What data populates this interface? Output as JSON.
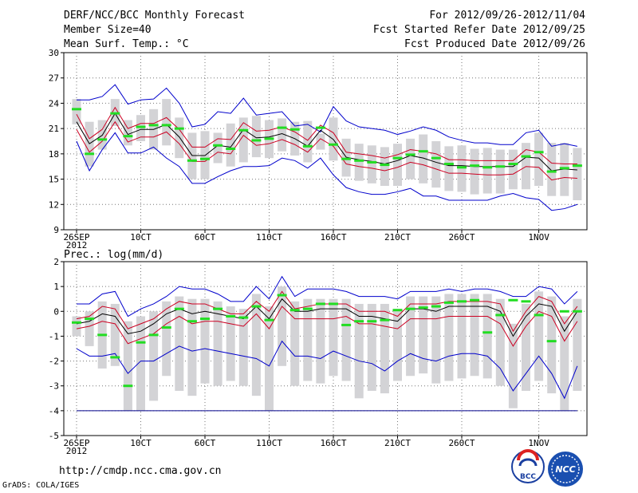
{
  "header": {
    "title": "DERF/NCC/BCC Monthly Forecast",
    "member": "Member Size=40",
    "variable": "Mean Surf. Temp.: °C",
    "period": "For 2012/09/26-2012/11/04",
    "started": "Fcst Started Refer Date 2012/09/25",
    "produced": "Fcst Produced Date 2012/09/26"
  },
  "precip_label": "Prec.: log(mm/d)",
  "footer": {
    "url": "http://cmdp.ncc.cma.gov.cn",
    "grads": "GrADS: COLA/IGES",
    "logo_bcc": "BCC",
    "logo_ncc": "NCC"
  },
  "colors": {
    "envelope": "#0000cc",
    "spread": "#cc0022",
    "mean": "#000000",
    "box": "#d3d3d6",
    "obs": "#22dd22",
    "floor": "#00008b"
  },
  "x_ticks": [
    "26SEP",
    "10CT",
    "60CT",
    "110CT",
    "160CT",
    "210CT",
    "260CT",
    "1NOV"
  ],
  "x_tick_days": [
    0,
    5,
    10,
    15,
    20,
    25,
    30,
    36
  ],
  "x_sub": "2012",
  "chart_data": [
    {
      "type": "line",
      "title": "Mean Surf. Temp.: °C",
      "ylim": [
        9,
        30
      ],
      "yticks": [
        9,
        12,
        15,
        18,
        21,
        24,
        27,
        30
      ],
      "x": [
        0,
        1,
        2,
        3,
        4,
        5,
        6,
        7,
        8,
        9,
        10,
        11,
        12,
        13,
        14,
        15,
        16,
        17,
        18,
        19,
        20,
        21,
        22,
        23,
        24,
        25,
        26,
        27,
        28,
        29,
        30,
        31,
        32,
        33,
        34,
        35,
        36,
        37,
        38,
        39
      ],
      "series": [
        {
          "name": "max",
          "values": [
            24.4,
            24.4,
            24.8,
            26.2,
            23.9,
            24.4,
            24.5,
            25.8,
            24.0,
            21.2,
            21.5,
            23.0,
            22.8,
            24.6,
            22.6,
            22.8,
            23.0,
            21.3,
            21.5,
            20.6,
            23.6,
            21.9,
            21.2,
            21.0,
            20.8,
            20.3,
            20.7,
            21.2,
            20.8,
            20.0,
            19.6,
            19.3,
            19.3,
            19.1,
            19.1,
            20.5,
            20.8,
            18.9,
            19.2,
            18.9
          ]
        },
        {
          "name": "upper",
          "values": [
            22.7,
            19.8,
            20.9,
            23.5,
            21.0,
            21.6,
            21.6,
            22.3,
            20.9,
            18.8,
            18.8,
            19.8,
            19.7,
            21.7,
            20.7,
            20.8,
            21.2,
            20.6,
            19.6,
            21.4,
            20.5,
            18.2,
            18.0,
            17.8,
            17.5,
            17.9,
            18.5,
            18.3,
            18.0,
            17.3,
            17.3,
            17.2,
            17.2,
            17.2,
            17.2,
            18.5,
            18.2,
            16.9,
            16.8,
            16.8
          ]
        },
        {
          "name": "mean",
          "values": [
            21.8,
            19.2,
            20.2,
            22.8,
            20.3,
            20.9,
            20.9,
            21.5,
            20.0,
            17.8,
            17.8,
            19.0,
            18.8,
            20.9,
            19.9,
            20.0,
            20.4,
            19.8,
            18.9,
            20.8,
            19.7,
            17.6,
            17.3,
            17.1,
            16.8,
            17.2,
            17.8,
            17.5,
            17.0,
            16.6,
            16.6,
            16.5,
            16.5,
            16.5,
            16.5,
            17.6,
            17.5,
            16.0,
            16.2,
            16.1
          ]
        },
        {
          "name": "lower",
          "values": [
            20.9,
            18.2,
            19.5,
            21.8,
            19.4,
            20.0,
            20.0,
            20.6,
            19.2,
            17.1,
            17.1,
            18.2,
            18.0,
            20.2,
            19.0,
            19.2,
            19.7,
            19.1,
            18.2,
            19.8,
            18.9,
            16.8,
            16.5,
            16.3,
            16.0,
            16.4,
            17.0,
            16.7,
            16.2,
            15.7,
            15.7,
            15.6,
            15.5,
            15.5,
            15.6,
            16.5,
            16.4,
            14.9,
            15.2,
            15.1
          ]
        },
        {
          "name": "min",
          "values": [
            19.5,
            16.0,
            18.5,
            20.5,
            18.1,
            18.1,
            18.8,
            17.5,
            16.5,
            14.5,
            14.5,
            15.3,
            16.0,
            16.5,
            16.5,
            16.6,
            17.5,
            17.2,
            16.3,
            17.5,
            15.5,
            14.0,
            13.5,
            13.2,
            13.2,
            13.5,
            13.9,
            13.0,
            13.0,
            12.5,
            12.5,
            12.5,
            12.5,
            13.0,
            13.3,
            12.8,
            12.6,
            11.3,
            11.5,
            12.0
          ]
        },
        {
          "name": "box_high",
          "values": [
            24.5,
            21.8,
            22.0,
            24.5,
            22.0,
            22.6,
            23.3,
            24.5,
            22.3,
            20.5,
            20.7,
            20.5,
            21.6,
            22.3,
            22.5,
            22.0,
            22.2,
            21.8,
            21.9,
            20.4,
            22.3,
            19.8,
            19.2,
            19.0,
            18.8,
            19.2,
            19.8,
            20.3,
            19.5,
            18.9,
            19.0,
            18.6,
            18.7,
            18.5,
            18.5,
            19.3,
            20.5,
            19.3,
            19.3,
            18.7
          ]
        },
        {
          "name": "box_low",
          "values": [
            21.5,
            16.5,
            18.5,
            21.3,
            19.0,
            19.5,
            18.5,
            19.0,
            17.5,
            15.0,
            15.0,
            16.9,
            16.5,
            17.0,
            17.6,
            17.5,
            18.3,
            17.8,
            17.0,
            18.5,
            17.2,
            15.3,
            14.8,
            14.5,
            14.2,
            14.2,
            15.0,
            14.5,
            14.0,
            13.6,
            13.5,
            13.2,
            13.3,
            13.3,
            13.8,
            13.8,
            14.2,
            13.0,
            13.0,
            12.5
          ]
        },
        {
          "name": "observed",
          "values": [
            23.3,
            18.0,
            19.7,
            22.8,
            20.1,
            21.2,
            21.4,
            21.4,
            21.0,
            17.2,
            17.4,
            19.0,
            18.6,
            20.8,
            19.6,
            19.8,
            21.1,
            20.9,
            18.9,
            21.1,
            19.1,
            17.4,
            17.2,
            17.0,
            16.7,
            17.5,
            17.9,
            18.3,
            17.5,
            16.8,
            16.4,
            16.6,
            16.4,
            16.5,
            16.8,
            17.7,
            18.2,
            15.9,
            16.3,
            16.6
          ]
        }
      ]
    },
    {
      "type": "line",
      "title": "Prec.: log(mm/d)",
      "ylim": [
        -5,
        2
      ],
      "yticks": [
        -5,
        -4,
        -3,
        -2,
        -1,
        0,
        1,
        2
      ],
      "x": [
        0,
        1,
        2,
        3,
        4,
        5,
        6,
        7,
        8,
        9,
        10,
        11,
        12,
        13,
        14,
        15,
        16,
        17,
        18,
        19,
        20,
        21,
        22,
        23,
        24,
        25,
        26,
        27,
        28,
        29,
        30,
        31,
        32,
        33,
        34,
        35,
        36,
        37,
        38,
        39
      ],
      "series": [
        {
          "name": "max",
          "values": [
            0.3,
            0.3,
            0.7,
            0.8,
            -0.2,
            0.1,
            0.3,
            0.6,
            1.0,
            0.9,
            0.9,
            0.7,
            0.4,
            0.4,
            1.0,
            0.5,
            1.4,
            0.6,
            0.9,
            0.9,
            0.9,
            0.8,
            0.6,
            0.6,
            0.6,
            0.5,
            0.8,
            0.8,
            0.8,
            0.9,
            0.8,
            0.9,
            0.9,
            0.8,
            0.6,
            0.6,
            1.0,
            0.9,
            0.3,
            0.8
          ]
        },
        {
          "name": "upper",
          "values": [
            -0.3,
            -0.2,
            0.2,
            0.1,
            -0.7,
            -0.5,
            -0.3,
            0.1,
            0.4,
            0.3,
            0.3,
            0.1,
            -0.1,
            -0.1,
            0.4,
            0.0,
            0.8,
            0.1,
            0.2,
            0.3,
            0.3,
            0.3,
            0.0,
            0.0,
            0.0,
            -0.2,
            0.3,
            0.3,
            0.3,
            0.4,
            0.4,
            0.4,
            0.4,
            0.3,
            -0.8,
            0.0,
            0.6,
            0.4,
            -0.5,
            0.2
          ]
        },
        {
          "name": "mean",
          "values": [
            -0.5,
            -0.4,
            -0.1,
            -0.2,
            -0.9,
            -0.8,
            -0.5,
            -0.1,
            0.1,
            -0.1,
            0.0,
            -0.1,
            -0.2,
            -0.3,
            0.2,
            -0.3,
            0.5,
            0.0,
            0.0,
            0.1,
            0.1,
            0.1,
            -0.2,
            -0.2,
            -0.3,
            -0.4,
            0.1,
            0.1,
            0.0,
            0.2,
            0.2,
            0.2,
            0.2,
            0.0,
            -1.0,
            -0.2,
            0.3,
            0.2,
            -0.8,
            0.0
          ]
        },
        {
          "name": "lower",
          "values": [
            -0.7,
            -0.6,
            -0.4,
            -0.5,
            -1.3,
            -1.1,
            -0.9,
            -0.5,
            -0.2,
            -0.5,
            -0.4,
            -0.4,
            -0.5,
            -0.6,
            -0.1,
            -0.7,
            0.2,
            -0.3,
            -0.3,
            -0.3,
            -0.3,
            -0.2,
            -0.5,
            -0.5,
            -0.6,
            -0.7,
            -0.3,
            -0.3,
            -0.3,
            -0.2,
            -0.2,
            -0.2,
            -0.2,
            -0.5,
            -1.4,
            -0.6,
            0.0,
            -0.2,
            -1.2,
            -0.4
          ]
        },
        {
          "name": "min",
          "values": [
            -1.5,
            -1.8,
            -1.8,
            -1.7,
            -2.5,
            -2.0,
            -2.0,
            -1.7,
            -1.4,
            -1.6,
            -1.5,
            -1.6,
            -1.7,
            -1.8,
            -1.9,
            -2.2,
            -1.2,
            -1.8,
            -1.8,
            -1.9,
            -1.6,
            -1.8,
            -2.0,
            -2.1,
            -2.4,
            -2.0,
            -1.7,
            -1.9,
            -2.0,
            -1.8,
            -1.7,
            -1.7,
            -1.8,
            -2.3,
            -3.2,
            -2.5,
            -1.8,
            -2.5,
            -3.5,
            -2.2
          ]
        },
        {
          "name": "box_high",
          "values": [
            -0.2,
            0.0,
            0.4,
            0.3,
            -0.4,
            -0.2,
            0.0,
            0.4,
            0.6,
            0.5,
            0.5,
            0.4,
            0.2,
            0.1,
            0.7,
            0.2,
            1.0,
            0.4,
            0.5,
            0.5,
            0.5,
            0.5,
            0.3,
            0.3,
            0.3,
            0.1,
            0.6,
            0.6,
            0.6,
            0.7,
            0.7,
            0.7,
            0.7,
            0.5,
            -0.5,
            0.3,
            0.8,
            0.6,
            -0.2,
            0.5
          ]
        },
        {
          "name": "box_low",
          "values": [
            -1.0,
            -1.4,
            -2.3,
            -2.2,
            -4.0,
            -4.0,
            -3.6,
            -2.6,
            -3.2,
            -3.4,
            -2.9,
            -3.0,
            -2.8,
            -3.0,
            -3.4,
            -4.0,
            -2.2,
            -3.0,
            -2.8,
            -2.9,
            -2.6,
            -2.8,
            -3.5,
            -3.2,
            -3.3,
            -2.8,
            -2.6,
            -2.5,
            -2.9,
            -2.8,
            -2.7,
            -2.6,
            -2.7,
            -3.0,
            -3.9,
            -3.2,
            -2.8,
            -3.3,
            -4.0,
            -3.2
          ]
        },
        {
          "name": "observed",
          "values": [
            -0.45,
            -0.3,
            -0.95,
            -1.85,
            -3.0,
            -1.25,
            -0.95,
            -0.65,
            0.1,
            -0.4,
            -0.3,
            0.1,
            -0.2,
            -0.25,
            0.2,
            -0.35,
            0.65,
            0.05,
            0.1,
            0.3,
            0.3,
            -0.55,
            -0.4,
            -0.4,
            -0.35,
            0.05,
            0.1,
            0.15,
            0.2,
            0.35,
            0.4,
            0.45,
            -0.85,
            -0.15,
            0.45,
            0.4,
            -0.15,
            -1.2,
            0.0,
            0.0
          ]
        },
        {
          "name": "floor",
          "values": [
            -4.0,
            -4.0,
            -4.0,
            -4.0,
            -4.0,
            -4.0,
            -4.0,
            -4.0,
            -4.0,
            -4.0,
            -4.0,
            -4.0,
            -4.0,
            -4.0,
            -4.0,
            -4.0,
            -4.0,
            -4.0,
            -4.0,
            -4.0,
            -4.0,
            -4.0,
            -4.0,
            -4.0,
            -4.0,
            -4.0,
            -4.0,
            -4.0,
            -4.0,
            -4.0,
            -4.0,
            -4.0,
            -4.0,
            -4.0,
            -4.0,
            -4.0,
            -4.0,
            -4.0,
            -4.0,
            -4.0
          ]
        }
      ]
    }
  ]
}
